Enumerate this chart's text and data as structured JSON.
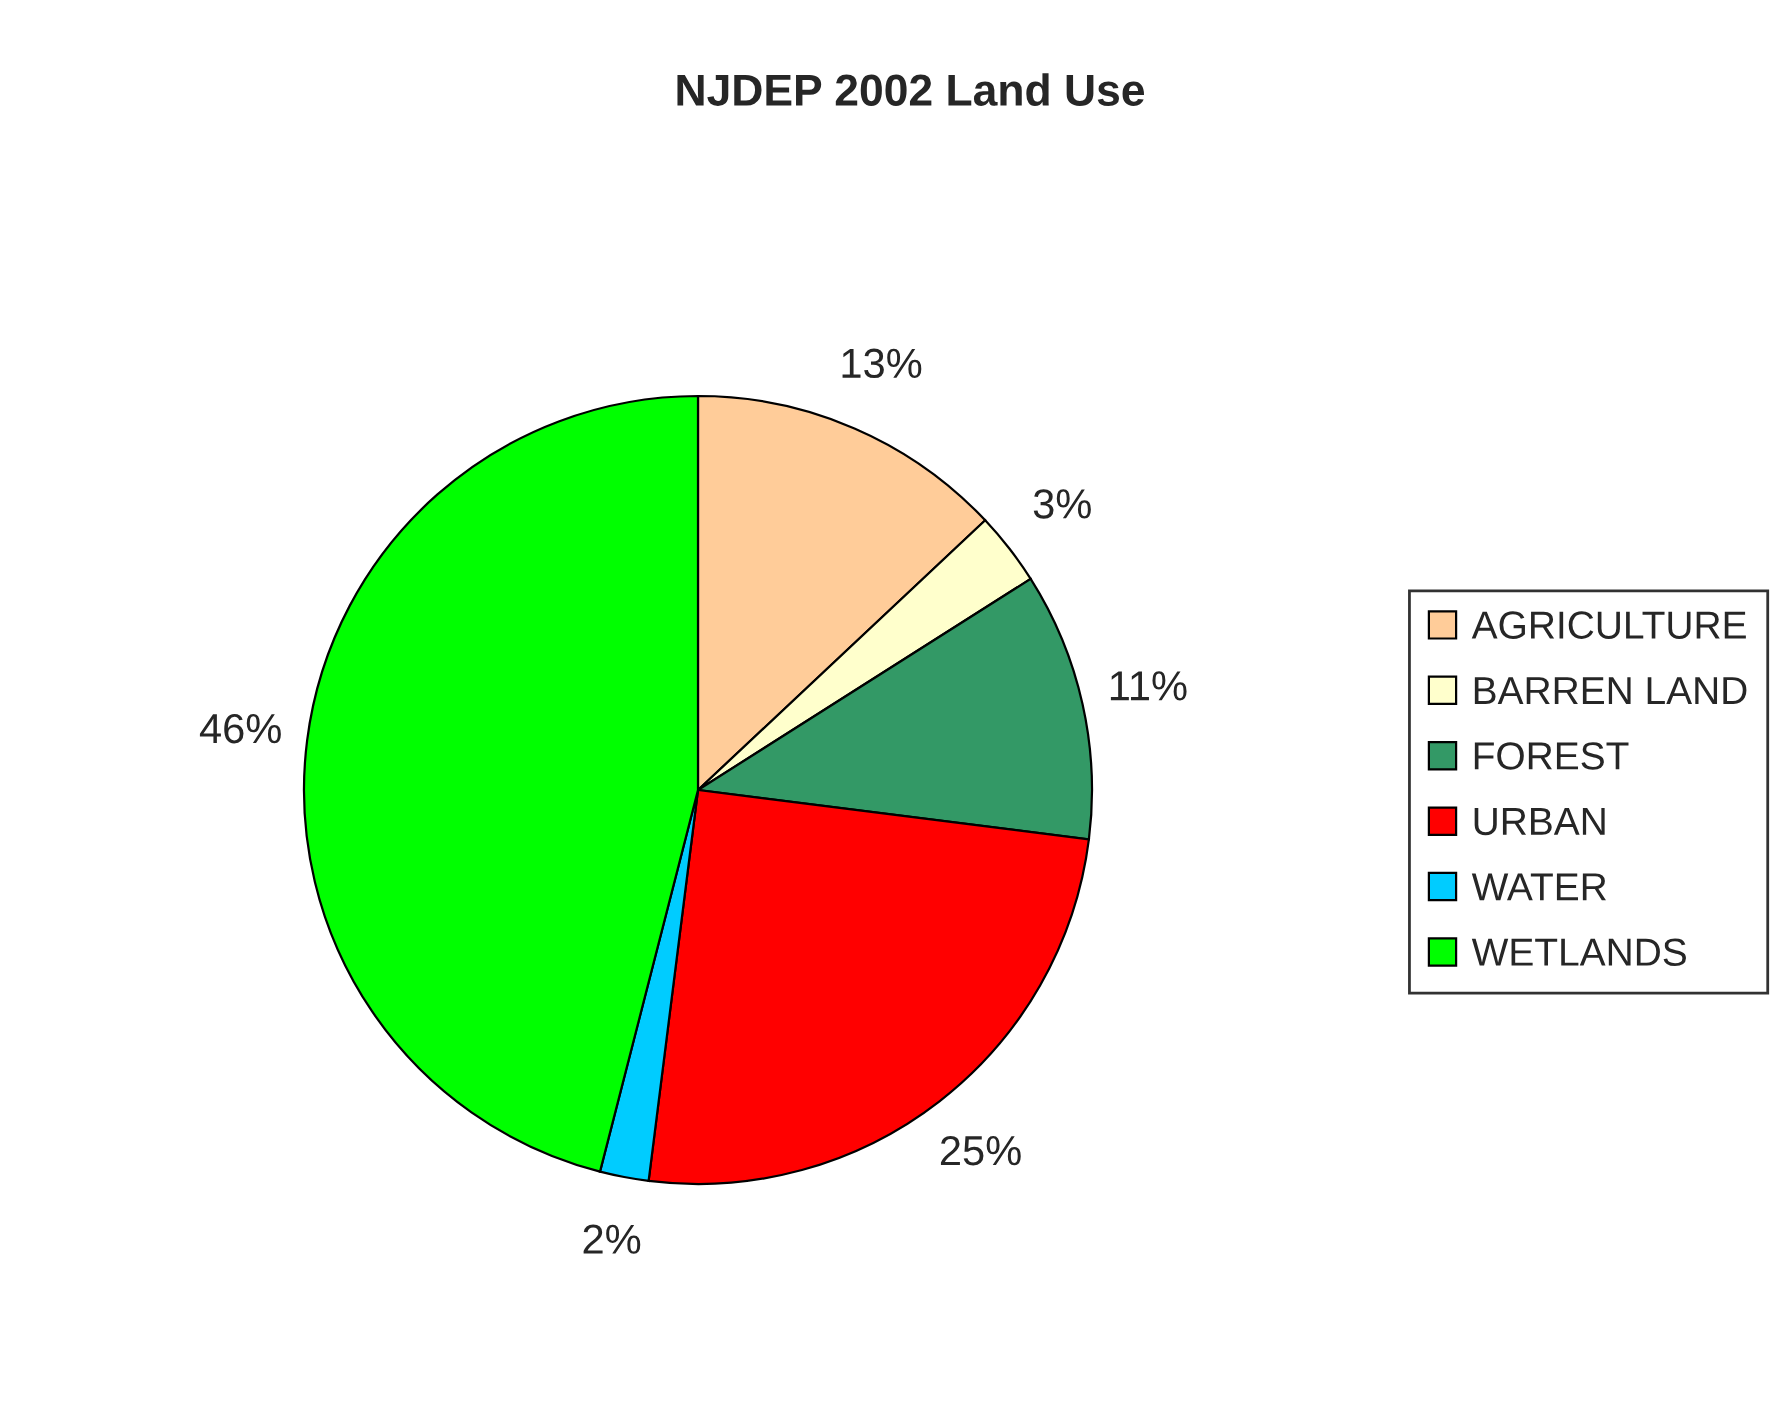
{
  "chart_data": {
    "type": "pie",
    "title": "NJDEP 2002 Land Use",
    "categories": [
      "AGRICULTURE",
      "BARREN LAND",
      "FOREST",
      "URBAN",
      "WATER",
      "WETLANDS"
    ],
    "values": [
      13,
      3,
      11,
      25,
      2,
      46
    ],
    "value_labels": [
      "13%",
      "3%",
      "11%",
      "25%",
      "2%",
      "46%"
    ],
    "colors": [
      "#ffcc99",
      "#ffffcc",
      "#339966",
      "#ff0000",
      "#00ccff",
      "#00ff00"
    ],
    "legend": "right"
  }
}
